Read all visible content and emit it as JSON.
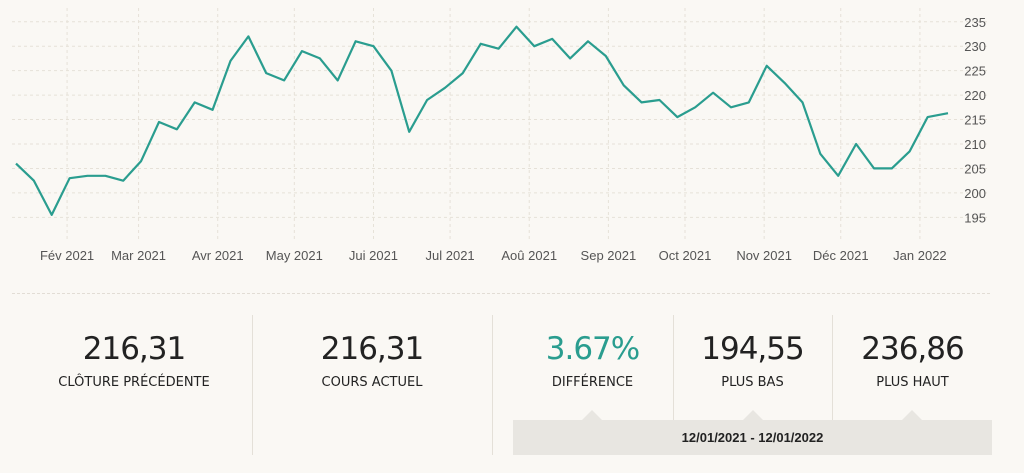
{
  "chart_data": {
    "type": "line",
    "title": "",
    "xlabel": "",
    "ylabel": "",
    "x_ticks": [
      "Fév 2021",
      "Mar 2021",
      "Avr 2021",
      "May 2021",
      "Jui 2021",
      "Jul 2021",
      "Aoû 2021",
      "Sep 2021",
      "Oct 2021",
      "Nov 2021",
      "Déc 2021",
      "Jan 2022"
    ],
    "y_ticks": [
      195,
      200,
      205,
      210,
      215,
      220,
      225,
      230,
      235
    ],
    "ylim": [
      192,
      237
    ],
    "xlim": [
      "2021-01-12",
      "2022-01-12"
    ],
    "grid": true,
    "line_color": "#2a9d8f",
    "series": [
      {
        "x": [
          "2021-01-12",
          "2021-01-19",
          "2021-01-26",
          "2021-02-02",
          "2021-02-09",
          "2021-02-16",
          "2021-02-23",
          "2021-03-02",
          "2021-03-09",
          "2021-03-16",
          "2021-03-23",
          "2021-03-30",
          "2021-04-06",
          "2021-04-13",
          "2021-04-20",
          "2021-04-27",
          "2021-05-04",
          "2021-05-11",
          "2021-05-18",
          "2021-05-25",
          "2021-06-01",
          "2021-06-08",
          "2021-06-15",
          "2021-06-22",
          "2021-06-29",
          "2021-07-06",
          "2021-07-13",
          "2021-07-20",
          "2021-07-27",
          "2021-08-03",
          "2021-08-10",
          "2021-08-17",
          "2021-08-24",
          "2021-08-31",
          "2021-09-07",
          "2021-09-14",
          "2021-09-21",
          "2021-09-28",
          "2021-10-05",
          "2021-10-12",
          "2021-10-19",
          "2021-10-26",
          "2021-11-02",
          "2021-11-09",
          "2021-11-16",
          "2021-11-23",
          "2021-11-30",
          "2021-12-07",
          "2021-12-14",
          "2021-12-21",
          "2021-12-28",
          "2022-01-04",
          "2022-01-12"
        ],
        "values": [
          206,
          202.5,
          195.5,
          203,
          203.5,
          203.5,
          202.5,
          206.5,
          214.5,
          213,
          218.5,
          217,
          227,
          232,
          224.5,
          223,
          229,
          227.5,
          223,
          231,
          230,
          225,
          212.5,
          219,
          221.5,
          224.5,
          230.5,
          229.5,
          234,
          230,
          231.5,
          227.5,
          231,
          228,
          222,
          218.5,
          219,
          215.5,
          217.5,
          220.5,
          217.5,
          218.5,
          226,
          222.5,
          218.5,
          208,
          203.5,
          210,
          205,
          205,
          208.5,
          215.5,
          216.3
        ]
      }
    ]
  },
  "stats": [
    {
      "value": "216,31",
      "label": "CLÔTURE PRÉCÉDENTE"
    },
    {
      "value": "216,31",
      "label": "COURS ACTUEL"
    },
    {
      "value": "3.67%",
      "label": "DIFFÉRENCE"
    },
    {
      "value": "194,55",
      "label": "PLUS BAS"
    },
    {
      "value": "236,86",
      "label": "PLUS HAUT"
    }
  ],
  "colors": {
    "accent": "#2a9d8f",
    "text": "#222222",
    "background": "#faf8f4"
  },
  "date_range": "12/01/2021 - 12/01/2022"
}
